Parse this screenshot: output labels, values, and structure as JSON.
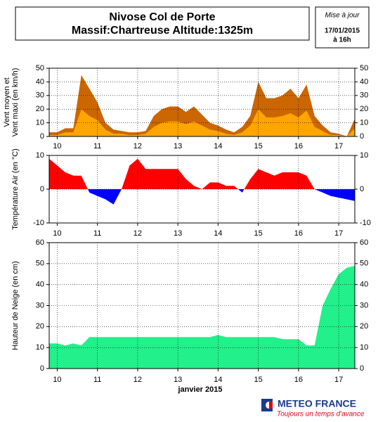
{
  "header": {
    "title": "Nivose Col de Porte",
    "subtitle": "Massif:Chartreuse Altitude:1325m",
    "update_label": "Mise à jour",
    "update_date": "17/01/2015",
    "update_time": "à 16h"
  },
  "xlabel": "janvier 2015",
  "logo": {
    "name": "METEO FRANCE",
    "tagline": "Toujours un temps d'avance"
  },
  "chart_data": [
    {
      "type": "area",
      "ylabel": [
        "Vent moyen et",
        "Vent maxi (en km/h)"
      ],
      "ylim": [
        0,
        50
      ],
      "yticks": [
        0,
        10,
        20,
        30,
        40,
        50
      ],
      "xlim": [
        9.8,
        17.4
      ],
      "xticks": [
        10,
        11,
        12,
        13,
        14,
        15,
        16,
        17
      ],
      "grid": true,
      "x": [
        9.8,
        10.0,
        10.2,
        10.4,
        10.6,
        10.8,
        11.0,
        11.2,
        11.4,
        11.6,
        11.8,
        12.0,
        12.2,
        12.4,
        12.6,
        12.8,
        13.0,
        13.2,
        13.4,
        13.6,
        13.8,
        14.0,
        14.2,
        14.4,
        14.6,
        14.8,
        15.0,
        15.2,
        15.4,
        15.6,
        15.8,
        16.0,
        16.2,
        16.4,
        16.6,
        16.8,
        17.0,
        17.2,
        17.4
      ],
      "series": [
        {
          "color": "#cc6600",
          "values": [
            3,
            3,
            6,
            6,
            45,
            35,
            25,
            10,
            5,
            4,
            3,
            3,
            4,
            15,
            20,
            22,
            22,
            18,
            22,
            16,
            10,
            8,
            5,
            3,
            7,
            15,
            40,
            28,
            28,
            30,
            35,
            28,
            38,
            15,
            8,
            3,
            2,
            0,
            13
          ]
        },
        {
          "color": "#ffa500",
          "values": [
            1,
            1,
            3,
            3,
            20,
            15,
            12,
            5,
            2,
            2,
            1,
            1,
            2,
            7,
            10,
            11,
            11,
            9,
            11,
            8,
            5,
            4,
            2,
            1,
            3,
            8,
            20,
            14,
            14,
            15,
            17,
            14,
            19,
            7,
            4,
            1,
            1,
            0,
            6
          ]
        }
      ]
    },
    {
      "type": "signed_area",
      "ylabel": [
        "Température Air (en °C)"
      ],
      "ylim": [
        -10,
        10
      ],
      "yticks": [
        -10,
        0,
        10
      ],
      "xlim": [
        9.8,
        17.4
      ],
      "xticks": [
        10,
        11,
        12,
        13,
        14,
        15,
        16,
        17
      ],
      "grid": true,
      "x": [
        9.8,
        10.0,
        10.2,
        10.4,
        10.6,
        10.8,
        11.0,
        11.2,
        11.4,
        11.6,
        11.8,
        12.0,
        12.2,
        12.4,
        12.6,
        12.8,
        13.0,
        13.2,
        13.4,
        13.6,
        13.8,
        14.0,
        14.2,
        14.4,
        14.6,
        14.8,
        15.0,
        15.2,
        15.4,
        15.6,
        15.8,
        16.0,
        16.2,
        16.4,
        16.6,
        16.8,
        17.0,
        17.2,
        17.4
      ],
      "series": [
        {
          "color": "#ff0000",
          "negative_color": "#0000ff",
          "values": [
            9,
            7,
            5,
            4,
            4,
            -1,
            -2,
            -3,
            -4.5,
            0,
            7,
            9,
            6,
            6,
            6,
            6,
            6,
            3,
            1,
            0,
            2,
            2,
            1,
            1,
            -1,
            3,
            6,
            5,
            4,
            5,
            5,
            5,
            4,
            0,
            -1,
            -2,
            -2.5,
            -3,
            -3.5
          ]
        }
      ]
    },
    {
      "type": "area",
      "ylabel": [
        "Hauteur de Neige (en cm)"
      ],
      "ylim": [
        0,
        60
      ],
      "yticks": [
        0,
        10,
        20,
        30,
        40,
        50,
        60
      ],
      "xlim": [
        9.8,
        17.4
      ],
      "xticks": [
        10,
        11,
        12,
        13,
        14,
        15,
        16,
        17
      ],
      "grid": true,
      "x": [
        9.8,
        10.0,
        10.2,
        10.4,
        10.6,
        10.8,
        11.0,
        11.2,
        11.4,
        11.6,
        11.8,
        12.0,
        12.2,
        12.4,
        12.6,
        12.8,
        13.0,
        13.2,
        13.4,
        13.6,
        13.8,
        14.0,
        14.2,
        14.4,
        14.6,
        14.8,
        15.0,
        15.2,
        15.4,
        15.6,
        15.8,
        16.0,
        16.2,
        16.4,
        16.6,
        16.8,
        17.0,
        17.2,
        17.4
      ],
      "series": [
        {
          "color": "#22f08a",
          "values": [
            12,
            12,
            11,
            12,
            11,
            15,
            15,
            15,
            15,
            15,
            15,
            15,
            15,
            15,
            15,
            15,
            15,
            15,
            15,
            15,
            15,
            16,
            15,
            15,
            15,
            15,
            15,
            15,
            15,
            14,
            14,
            14,
            11,
            11,
            30,
            38,
            45,
            48,
            49
          ]
        }
      ]
    }
  ]
}
